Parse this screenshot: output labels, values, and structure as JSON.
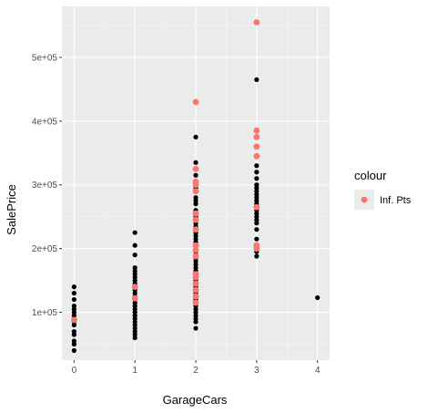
{
  "chart_data": {
    "type": "scatter",
    "xlabel": "GarageCars",
    "ylabel": "SalePrice",
    "xlim": [
      -0.2,
      4.2
    ],
    "ylim": [
      25000,
      580000
    ],
    "x_ticks": [
      {
        "value": 0,
        "label": "0"
      },
      {
        "value": 1,
        "label": "1"
      },
      {
        "value": 2,
        "label": "2"
      },
      {
        "value": 3,
        "label": "3"
      },
      {
        "value": 4,
        "label": "4"
      }
    ],
    "y_ticks": [
      {
        "value": 100000,
        "label": "1e+05"
      },
      {
        "value": 200000,
        "label": "2e+05"
      },
      {
        "value": 300000,
        "label": "3e+05"
      },
      {
        "value": 400000,
        "label": "4e+05"
      },
      {
        "value": 500000,
        "label": "5e+05"
      }
    ],
    "grid": true,
    "legend": {
      "title": "colour",
      "position": "right"
    },
    "series": [
      {
        "name": "",
        "color": "#000000",
        "points": [
          [
            0,
            140000
          ],
          [
            0,
            130000
          ],
          [
            0,
            120000
          ],
          [
            0,
            110000
          ],
          [
            0,
            105000
          ],
          [
            0,
            100000
          ],
          [
            0,
            95000
          ],
          [
            0,
            90000
          ],
          [
            0,
            85000
          ],
          [
            0,
            80000
          ],
          [
            0,
            70000
          ],
          [
            0,
            65000
          ],
          [
            0,
            55000
          ],
          [
            0,
            50000
          ],
          [
            0,
            40000
          ],
          [
            1,
            225000
          ],
          [
            1,
            205000
          ],
          [
            1,
            190000
          ],
          [
            1,
            170000
          ],
          [
            1,
            165000
          ],
          [
            1,
            160000
          ],
          [
            1,
            155000
          ],
          [
            1,
            150000
          ],
          [
            1,
            145000
          ],
          [
            1,
            135000
          ],
          [
            1,
            130000
          ],
          [
            1,
            125000
          ],
          [
            1,
            120000
          ],
          [
            1,
            115000
          ],
          [
            1,
            110000
          ],
          [
            1,
            105000
          ],
          [
            1,
            100000
          ],
          [
            1,
            95000
          ],
          [
            1,
            90000
          ],
          [
            1,
            85000
          ],
          [
            1,
            80000
          ],
          [
            1,
            75000
          ],
          [
            1,
            70000
          ],
          [
            1,
            65000
          ],
          [
            1,
            60000
          ],
          [
            2,
            375000
          ],
          [
            2,
            335000
          ],
          [
            2,
            325000
          ],
          [
            2,
            315000
          ],
          [
            2,
            295000
          ],
          [
            2,
            290000
          ],
          [
            2,
            280000
          ],
          [
            2,
            275000
          ],
          [
            2,
            270000
          ],
          [
            2,
            260000
          ],
          [
            2,
            255000
          ],
          [
            2,
            250000
          ],
          [
            2,
            245000
          ],
          [
            2,
            240000
          ],
          [
            2,
            235000
          ],
          [
            2,
            230000
          ],
          [
            2,
            225000
          ],
          [
            2,
            220000
          ],
          [
            2,
            215000
          ],
          [
            2,
            210000
          ],
          [
            2,
            205000
          ],
          [
            2,
            200000
          ],
          [
            2,
            195000
          ],
          [
            2,
            190000
          ],
          [
            2,
            185000
          ],
          [
            2,
            180000
          ],
          [
            2,
            175000
          ],
          [
            2,
            170000
          ],
          [
            2,
            165000
          ],
          [
            2,
            160000
          ],
          [
            2,
            155000
          ],
          [
            2,
            150000
          ],
          [
            2,
            145000
          ],
          [
            2,
            140000
          ],
          [
            2,
            135000
          ],
          [
            2,
            130000
          ],
          [
            2,
            125000
          ],
          [
            2,
            120000
          ],
          [
            2,
            115000
          ],
          [
            2,
            110000
          ],
          [
            2,
            105000
          ],
          [
            2,
            100000
          ],
          [
            2,
            95000
          ],
          [
            2,
            90000
          ],
          [
            2,
            85000
          ],
          [
            2,
            75000
          ],
          [
            3,
            465000
          ],
          [
            3,
            345000
          ],
          [
            3,
            330000
          ],
          [
            3,
            320000
          ],
          [
            3,
            310000
          ],
          [
            3,
            300000
          ],
          [
            3,
            295000
          ],
          [
            3,
            290000
          ],
          [
            3,
            285000
          ],
          [
            3,
            280000
          ],
          [
            3,
            275000
          ],
          [
            3,
            270000
          ],
          [
            3,
            265000
          ],
          [
            3,
            260000
          ],
          [
            3,
            255000
          ],
          [
            3,
            250000
          ],
          [
            3,
            245000
          ],
          [
            3,
            240000
          ],
          [
            3,
            230000
          ],
          [
            3,
            215000
          ],
          [
            3,
            205000
          ],
          [
            3,
            200000
          ],
          [
            3,
            195000
          ],
          [
            3,
            188000
          ],
          [
            4,
            123000
          ]
        ]
      },
      {
        "name": "Inf. Pts",
        "color": "#f8766d",
        "points": [
          [
            0,
            88000
          ],
          [
            1,
            140000
          ],
          [
            1,
            122000
          ],
          [
            2,
            430000
          ],
          [
            2,
            325000
          ],
          [
            2,
            305000
          ],
          [
            2,
            300000
          ],
          [
            2,
            290000
          ],
          [
            2,
            255000
          ],
          [
            2,
            245000
          ],
          [
            2,
            230000
          ],
          [
            2,
            205000
          ],
          [
            2,
            198000
          ],
          [
            2,
            188000
          ],
          [
            2,
            160000
          ],
          [
            2,
            155000
          ],
          [
            2,
            145000
          ],
          [
            2,
            135000
          ],
          [
            2,
            125000
          ],
          [
            2,
            115000
          ],
          [
            3,
            555000
          ],
          [
            3,
            385000
          ],
          [
            3,
            375000
          ],
          [
            3,
            360000
          ],
          [
            3,
            345000
          ],
          [
            3,
            265000
          ],
          [
            3,
            205000
          ],
          [
            3,
            200000
          ]
        ]
      }
    ]
  }
}
